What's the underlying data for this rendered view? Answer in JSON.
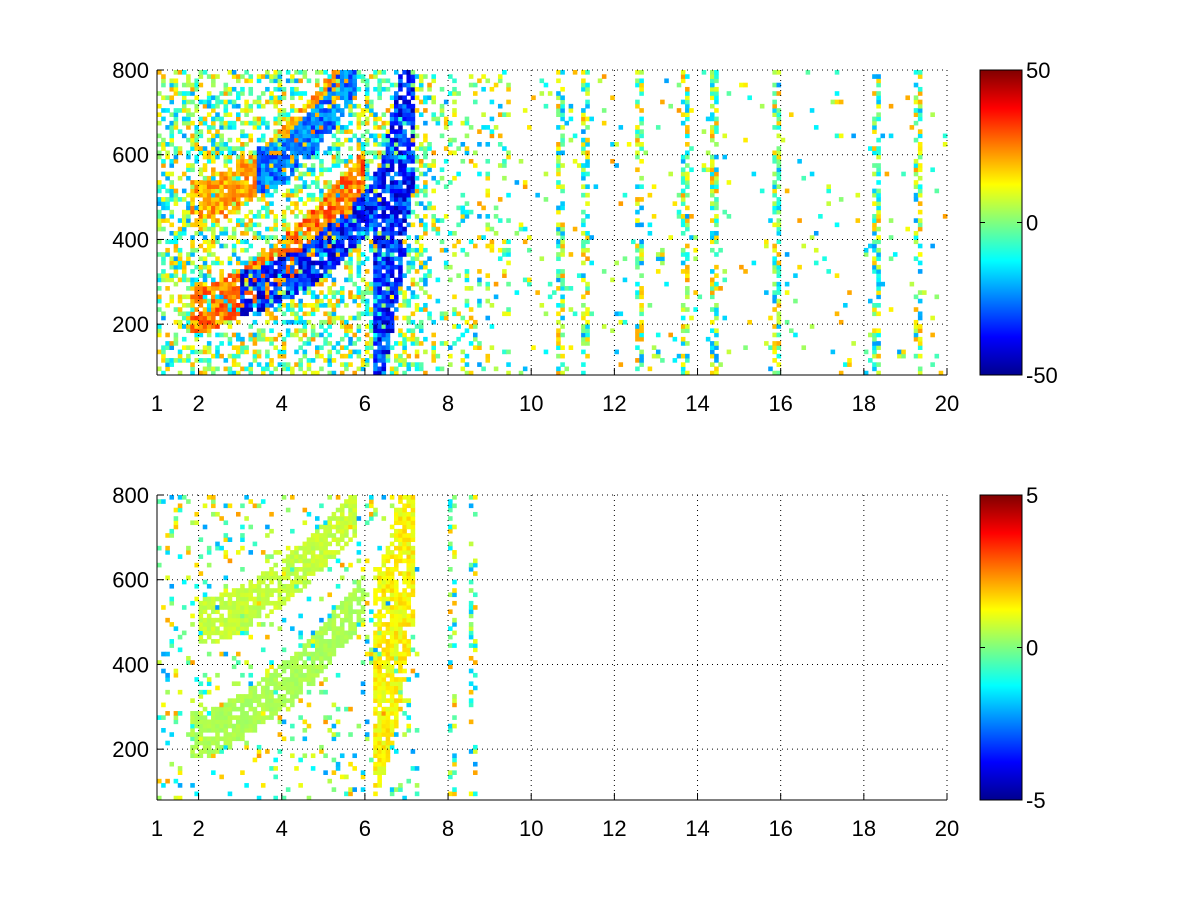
{
  "chart_data": [
    {
      "type": "heatmap",
      "title": "",
      "xlabel": "",
      "ylabel": "",
      "xlim": [
        1,
        20
      ],
      "ylim": [
        80,
        800
      ],
      "xticks": [
        1,
        2,
        4,
        6,
        8,
        10,
        12,
        14,
        16,
        18,
        20
      ],
      "yticks": [
        200,
        400,
        600,
        800
      ],
      "grid": true,
      "colormap": "jet",
      "clim": [
        -50,
        50
      ],
      "colorbar_ticks": [
        50,
        0,
        -50
      ],
      "features": [
        {
          "x": [
            1.8,
            6.0
          ],
          "y_center": [
            230,
            560
          ],
          "value": 30,
          "comment": "lower warm band"
        },
        {
          "x": [
            3.0,
            6.2
          ],
          "y_center": [
            270,
            480
          ],
          "value": -40,
          "comment": "lower cool band"
        },
        {
          "x": [
            1.8,
            5.6
          ],
          "y_center": [
            480,
            790
          ],
          "value": 25,
          "comment": "upper warm band"
        },
        {
          "x": [
            3.4,
            5.8
          ],
          "y_center": [
            560,
            800
          ],
          "value": -30,
          "comment": "upper cool band"
        },
        {
          "x": [
            6.2,
            7.2
          ],
          "y_center": [
            300,
            800
          ],
          "value": -40,
          "comment": "vertical cool strip"
        }
      ],
      "noise_columns": [
        10.7,
        11.3,
        12.6,
        13.7,
        14.4,
        15.9,
        18.3,
        19.3
      ]
    },
    {
      "type": "heatmap",
      "title": "",
      "xlabel": "",
      "ylabel": "",
      "xlim": [
        1,
        20
      ],
      "ylim": [
        80,
        800
      ],
      "xticks": [
        1,
        2,
        4,
        6,
        8,
        10,
        12,
        14,
        16,
        18,
        20
      ],
      "yticks": [
        200,
        400,
        600,
        800
      ],
      "grid": true,
      "colormap": "jet",
      "clim": [
        -5,
        5
      ],
      "colorbar_ticks": [
        5,
        0,
        -5
      ],
      "features": [
        {
          "x": [
            1.8,
            6.0
          ],
          "y_center": [
            230,
            560
          ],
          "value": 0.5,
          "comment": "lower band"
        },
        {
          "x": [
            2.0,
            5.8
          ],
          "y_center": [
            500,
            760
          ],
          "value": 0.8,
          "comment": "upper band"
        },
        {
          "x": [
            6.2,
            7.2
          ],
          "y_center": [
            350,
            780
          ],
          "value": 1.5,
          "comment": "vertical strip"
        }
      ],
      "noise_columns": [
        8.1,
        8.6
      ]
    }
  ]
}
